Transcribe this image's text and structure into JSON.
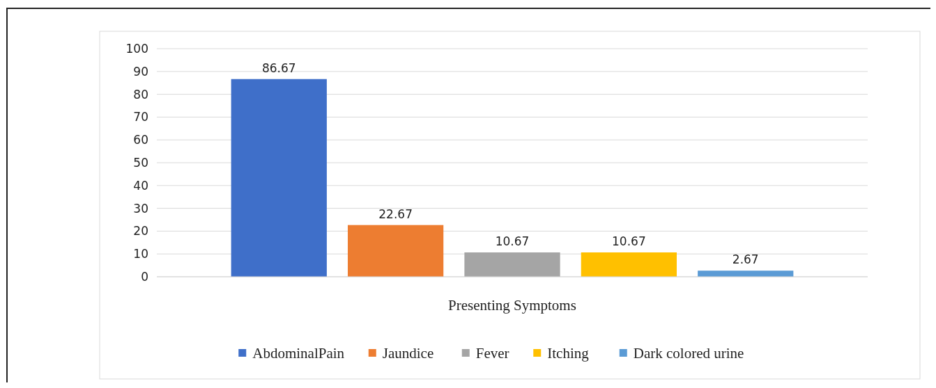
{
  "chart_data": {
    "type": "bar",
    "xlabel": "Presenting Symptoms",
    "categories": [
      null
    ],
    "series": [
      {
        "name": "AbdominalPain",
        "color": "#3f6fc9",
        "values": [
          86.67
        ]
      },
      {
        "name": "Jaundice",
        "color": "#ed7d31",
        "values": [
          22.67
        ]
      },
      {
        "name": "Fever",
        "color": "#a5a5a5",
        "values": [
          10.67
        ]
      },
      {
        "name": "Itching",
        "color": "#ffc000",
        "values": [
          10.67
        ]
      },
      {
        "name": "Dark colored urine",
        "color": "#5b9bd5",
        "values": [
          2.67
        ]
      }
    ],
    "ylim": [
      0,
      100
    ],
    "yticks": [
      0,
      10,
      20,
      30,
      40,
      50,
      60,
      70,
      80,
      90,
      100
    ],
    "grid": "y",
    "legend": "bottom",
    "data_labels": true
  }
}
